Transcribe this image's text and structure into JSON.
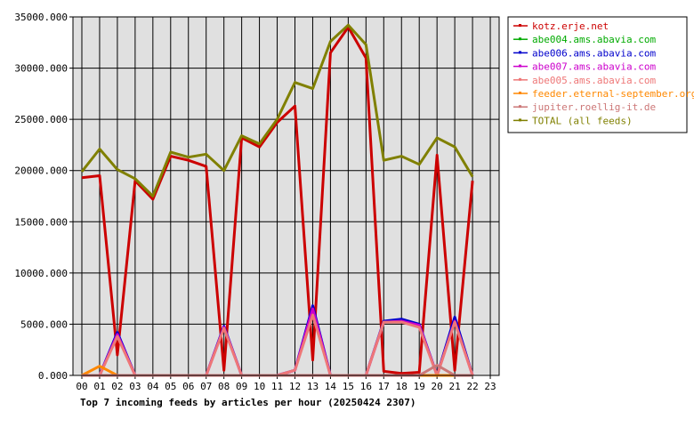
{
  "chart_data": {
    "type": "line",
    "title": "Top 7 incoming feeds by articles per hour (20250424 2307)",
    "x": [
      "00",
      "01",
      "02",
      "03",
      "04",
      "05",
      "06",
      "07",
      "08",
      "09",
      "10",
      "11",
      "12",
      "13",
      "14",
      "15",
      "16",
      "17",
      "18",
      "19",
      "20",
      "21",
      "22",
      "23"
    ],
    "ylim": [
      0,
      35000
    ],
    "yticks": [
      "0.000",
      "5000.000",
      "10000.000",
      "15000.000",
      "20000.000",
      "25000.000",
      "30000.000",
      "35000.000"
    ],
    "yticks_values": [
      0,
      5000,
      10000,
      15000,
      20000,
      25000,
      30000,
      35000
    ],
    "grid": true,
    "legend_position": "right",
    "series": [
      {
        "name": "kotz.erje.net",
        "color": "#cc0000",
        "values": [
          19300,
          19500,
          2000,
          19000,
          17200,
          21400,
          21000,
          20400,
          500,
          23200,
          22300,
          24700,
          26300,
          1500,
          31500,
          34000,
          31000,
          400,
          200,
          300,
          21500,
          500,
          19000,
          null
        ]
      },
      {
        "name": "abe004.ams.abavia.com",
        "color": "#00aa00",
        "values": [
          0,
          0,
          0,
          0,
          0,
          0,
          0,
          0,
          0,
          0,
          0,
          0,
          0,
          0,
          0,
          0,
          0,
          0,
          0,
          0,
          0,
          0,
          0,
          null
        ]
      },
      {
        "name": "abe006.ams.abavia.com",
        "color": "#0000cc",
        "values": [
          0,
          0,
          4200,
          0,
          0,
          0,
          0,
          0,
          4800,
          0,
          0,
          0,
          500,
          6800,
          0,
          0,
          0,
          5300,
          5500,
          5000,
          0,
          5700,
          0,
          null
        ]
      },
      {
        "name": "abe007.ams.abavia.com",
        "color": "#cc00cc",
        "values": [
          0,
          0,
          4000,
          0,
          0,
          0,
          0,
          0,
          4700,
          0,
          0,
          0,
          500,
          6500,
          0,
          0,
          0,
          5200,
          5300,
          4900,
          0,
          5300,
          0,
          null
        ]
      },
      {
        "name": "abe005.ams.abavia.com",
        "color": "#ee7777",
        "values": [
          0,
          0,
          3800,
          0,
          0,
          0,
          0,
          0,
          4600,
          0,
          0,
          0,
          500,
          5900,
          0,
          0,
          0,
          5200,
          5200,
          4700,
          0,
          5200,
          0,
          null
        ]
      },
      {
        "name": "feeder.eternal-september.org",
        "color": "#ff8800",
        "values": [
          0,
          900,
          0,
          0,
          0,
          0,
          0,
          0,
          0,
          0,
          0,
          0,
          0,
          0,
          0,
          0,
          0,
          0,
          0,
          0,
          0,
          0,
          0,
          null
        ]
      },
      {
        "name": "jupiter.roellig-it.de",
        "color": "#cc7777",
        "values": [
          0,
          0,
          0,
          0,
          0,
          0,
          0,
          0,
          0,
          0,
          0,
          0,
          0,
          0,
          0,
          0,
          0,
          0,
          0,
          0,
          1000,
          0,
          0,
          null
        ]
      },
      {
        "name": "TOTAL (all feeds)",
        "color": "#808000",
        "values": [
          19900,
          22100,
          20100,
          19200,
          17500,
          21800,
          21300,
          21600,
          20000,
          23400,
          22600,
          25000,
          28600,
          28000,
          32600,
          34200,
          32300,
          21000,
          21400,
          20600,
          23200,
          22300,
          19400,
          null
        ]
      }
    ]
  }
}
